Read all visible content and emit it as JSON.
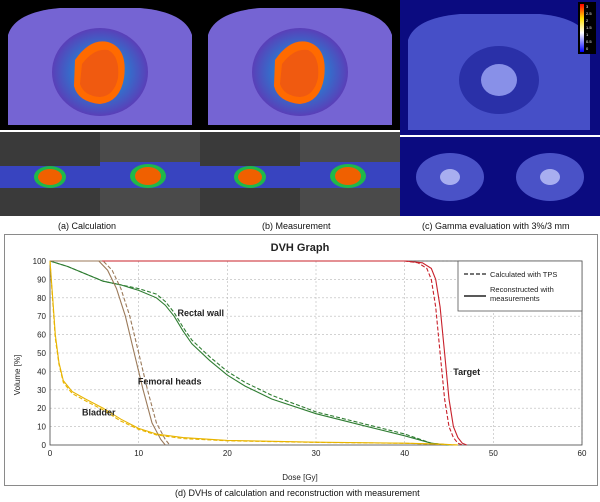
{
  "captions": {
    "a": "(a) Calculation",
    "b": "(b) Measurement",
    "c": "(c) Gamma evaluation with 3%/3 mm",
    "d": "(d) DVHs of calculation and reconstruction with measurement"
  },
  "gamma_scale_labels": [
    "3",
    "2.5",
    "2",
    "1.5",
    "1",
    "0.5",
    "0"
  ],
  "colors": {
    "target": "#c8202a",
    "rectal_wall": "#2f7d32",
    "femoral_heads": "#9b7a5a",
    "bladder": "#e8b400",
    "grid": "#b8b8b8"
  },
  "chart_data": {
    "type": "line",
    "title": "DVH Graph",
    "xlabel": "Dose [Gy]",
    "ylabel": "Volume [%]",
    "xlim": [
      0,
      60
    ],
    "ylim": [
      0,
      100
    ],
    "x_ticks": [
      0,
      10,
      20,
      30,
      40,
      50,
      60
    ],
    "y_ticks": [
      0,
      10,
      20,
      30,
      40,
      50,
      60,
      70,
      80,
      90,
      100
    ],
    "grid": true,
    "legend": {
      "position": "top-right",
      "entries": [
        {
          "label": "Calculated with TPS",
          "style": "dashed"
        },
        {
          "label": "Reconstructed with measurements",
          "style": "solid"
        }
      ]
    },
    "annotations": [
      {
        "text": "Rectal wall",
        "x": 17,
        "y": 70
      },
      {
        "text": "Femoral heads",
        "x": 13.5,
        "y": 33
      },
      {
        "text": "Bladder",
        "x": 5.5,
        "y": 16
      },
      {
        "text": "Target",
        "x": 47,
        "y": 38
      }
    ],
    "series": [
      {
        "name": "Target",
        "style": "solid",
        "color": "#c8202a",
        "points": [
          [
            0,
            100
          ],
          [
            40,
            100
          ],
          [
            42,
            99
          ],
          [
            43,
            96
          ],
          [
            43.5,
            90
          ],
          [
            44,
            75
          ],
          [
            44.5,
            50
          ],
          [
            45,
            25
          ],
          [
            45.5,
            10
          ],
          [
            46,
            4
          ],
          [
            46.5,
            1
          ],
          [
            47,
            0
          ]
        ]
      },
      {
        "name": "Target",
        "style": "dashed",
        "color": "#c8202a",
        "points": [
          [
            0,
            100
          ],
          [
            40,
            100
          ],
          [
            41.5,
            99
          ],
          [
            42.5,
            96
          ],
          [
            43,
            90
          ],
          [
            43.5,
            75
          ],
          [
            44,
            50
          ],
          [
            44.5,
            25
          ],
          [
            45,
            10
          ],
          [
            45.5,
            4
          ],
          [
            46,
            1
          ],
          [
            46.5,
            0
          ]
        ]
      },
      {
        "name": "Rectal wall",
        "style": "solid",
        "color": "#2f7d32",
        "points": [
          [
            0,
            100
          ],
          [
            2,
            97
          ],
          [
            4,
            93
          ],
          [
            6,
            89
          ],
          [
            8,
            87
          ],
          [
            10,
            84
          ],
          [
            12,
            80
          ],
          [
            13,
            76
          ],
          [
            14,
            70
          ],
          [
            15,
            62
          ],
          [
            16,
            55
          ],
          [
            18,
            46
          ],
          [
            20,
            38
          ],
          [
            22,
            32
          ],
          [
            25,
            25
          ],
          [
            30,
            17
          ],
          [
            35,
            11
          ],
          [
            40,
            5
          ],
          [
            43,
            1
          ],
          [
            45,
            0
          ]
        ]
      },
      {
        "name": "Rectal wall",
        "style": "dashed",
        "color": "#2f7d32",
        "points": [
          [
            0,
            100
          ],
          [
            2,
            97
          ],
          [
            4,
            93
          ],
          [
            6,
            89
          ],
          [
            8,
            87
          ],
          [
            10,
            85
          ],
          [
            12,
            82
          ],
          [
            13,
            78
          ],
          [
            14,
            72
          ],
          [
            15,
            64
          ],
          [
            16,
            57
          ],
          [
            18,
            48
          ],
          [
            20,
            40
          ],
          [
            22,
            34
          ],
          [
            25,
            27
          ],
          [
            30,
            18
          ],
          [
            35,
            12
          ],
          [
            40,
            6
          ],
          [
            43,
            1
          ],
          [
            45,
            0
          ]
        ]
      },
      {
        "name": "Femoral heads",
        "style": "solid",
        "color": "#9b7a5a",
        "points": [
          [
            0,
            100
          ],
          [
            5.5,
            100
          ],
          [
            6.5,
            95
          ],
          [
            7.5,
            85
          ],
          [
            8.5,
            70
          ],
          [
            9.5,
            50
          ],
          [
            10.5,
            30
          ],
          [
            11.5,
            12
          ],
          [
            12.5,
            3
          ],
          [
            13,
            0
          ]
        ]
      },
      {
        "name": "Femoral heads",
        "style": "dashed",
        "color": "#9b7a5a",
        "points": [
          [
            0,
            100
          ],
          [
            6,
            100
          ],
          [
            7,
            95
          ],
          [
            8,
            85
          ],
          [
            9,
            70
          ],
          [
            10,
            50
          ],
          [
            11,
            30
          ],
          [
            12,
            12
          ],
          [
            13,
            3
          ],
          [
            13.5,
            0
          ]
        ]
      },
      {
        "name": "Bladder",
        "style": "solid",
        "color": "#e8b400",
        "points": [
          [
            0,
            100
          ],
          [
            0.3,
            80
          ],
          [
            0.6,
            60
          ],
          [
            1,
            45
          ],
          [
            1.5,
            35
          ],
          [
            2.5,
            29
          ],
          [
            4,
            25
          ],
          [
            6,
            20
          ],
          [
            8,
            14
          ],
          [
            10,
            9
          ],
          [
            12,
            6
          ],
          [
            15,
            4
          ],
          [
            20,
            2.5
          ],
          [
            30,
            1.5
          ],
          [
            40,
            1
          ],
          [
            44,
            0.5
          ],
          [
            46,
            0
          ]
        ]
      },
      {
        "name": "Bladder",
        "style": "dashed",
        "color": "#e8b400",
        "points": [
          [
            0,
            100
          ],
          [
            0.3,
            78
          ],
          [
            0.6,
            58
          ],
          [
            1,
            44
          ],
          [
            1.5,
            34
          ],
          [
            2.5,
            28
          ],
          [
            4,
            24
          ],
          [
            6,
            19
          ],
          [
            8,
            13
          ],
          [
            10,
            8.5
          ],
          [
            12,
            5.5
          ],
          [
            15,
            3.5
          ],
          [
            20,
            2.3
          ],
          [
            30,
            1.4
          ],
          [
            40,
            0.9
          ],
          [
            44,
            0.4
          ],
          [
            46,
            0
          ]
        ]
      }
    ]
  }
}
